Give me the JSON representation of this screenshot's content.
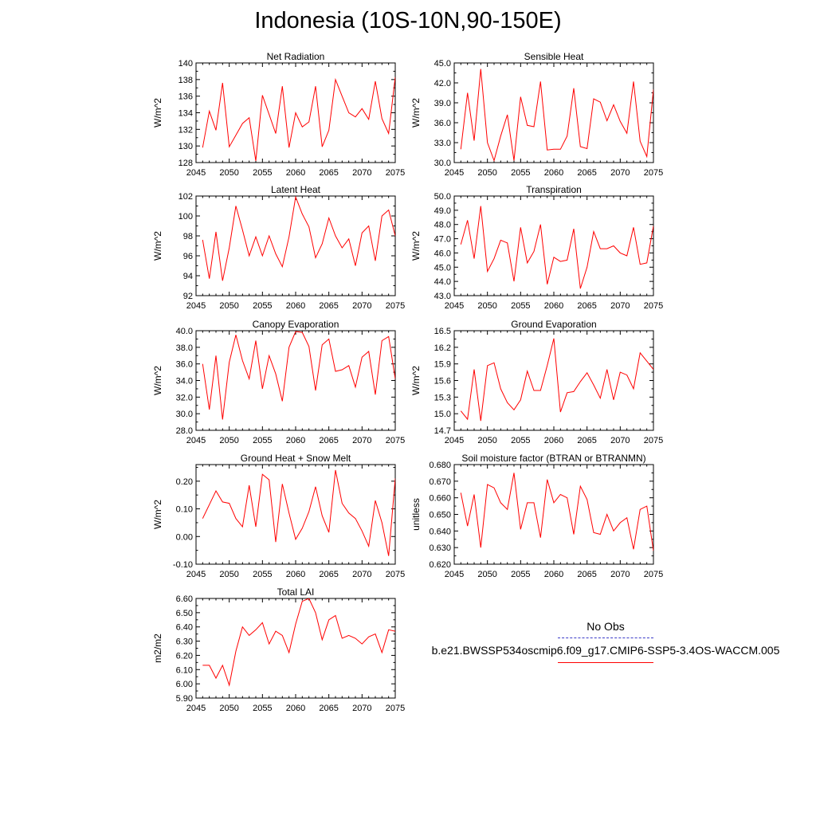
{
  "title": "Indonesia (10S-10N,90-150E)",
  "colors": {
    "model": "#ff0000",
    "obs": "#3a3ac8",
    "axis": "#000000"
  },
  "legend": {
    "obs_label": "No Obs",
    "model_label": "b.e21.BWSSP534oscmip6.f09_g17.CMIP6-SSP5-3.4OS-WACCM.005"
  },
  "chart_data": [
    {
      "type": "line",
      "title": "Net Radiation",
      "ylabel": "W/m^2",
      "xlim": [
        2045,
        2075
      ],
      "ylim": [
        128,
        140
      ],
      "xticks": [
        "2045",
        "2050",
        "2055",
        "2060",
        "2065",
        "2070",
        "2075"
      ],
      "yticks": [
        "128",
        "130",
        "132",
        "134",
        "136",
        "138",
        "140"
      ],
      "x": [
        2046,
        2047,
        2048,
        2049,
        2050,
        2051,
        2052,
        2053,
        2054,
        2055,
        2056,
        2057,
        2058,
        2059,
        2060,
        2061,
        2062,
        2063,
        2064,
        2065,
        2066,
        2067,
        2068,
        2069,
        2070,
        2071,
        2072,
        2073,
        2074,
        2075
      ],
      "values": [
        129.8,
        134.2,
        131.9,
        137.6,
        129.9,
        131.3,
        132.7,
        133.4,
        128.2,
        136.1,
        133.8,
        131.5,
        137.2,
        129.8,
        134.0,
        132.3,
        132.9,
        137.2,
        129.9,
        131.9,
        138.0,
        136.0,
        134.0,
        133.5,
        134.5,
        133.2,
        137.8,
        133.3,
        131.5,
        138.3
      ]
    },
    {
      "type": "line",
      "title": "Sensible Heat",
      "ylabel": "W/m^2",
      "xlim": [
        2045,
        2075
      ],
      "ylim": [
        30.0,
        45.0
      ],
      "xticks": [
        "2045",
        "2050",
        "2055",
        "2060",
        "2065",
        "2070",
        "2075"
      ],
      "yticks": [
        "30.0",
        "33.0",
        "36.0",
        "39.0",
        "42.0",
        "45.0"
      ],
      "x": [
        2046,
        2047,
        2048,
        2049,
        2050,
        2051,
        2052,
        2053,
        2054,
        2055,
        2056,
        2057,
        2058,
        2059,
        2060,
        2061,
        2062,
        2063,
        2064,
        2065,
        2066,
        2067,
        2068,
        2069,
        2070,
        2071,
        2072,
        2073,
        2074,
        2075
      ],
      "values": [
        32.0,
        40.5,
        33.3,
        44.1,
        33.0,
        30.3,
        34.0,
        37.2,
        30.3,
        39.9,
        35.6,
        35.4,
        42.2,
        31.9,
        32.0,
        32.0,
        34.0,
        41.2,
        32.4,
        32.1,
        39.6,
        39.1,
        36.3,
        38.7,
        36.2,
        34.4,
        42.2,
        33.2,
        30.9,
        41.0
      ]
    },
    {
      "type": "line",
      "title": "Latent Heat",
      "ylabel": "W/m^2",
      "xlim": [
        2045,
        2075
      ],
      "ylim": [
        92,
        102
      ],
      "xticks": [
        "2045",
        "2050",
        "2055",
        "2060",
        "2065",
        "2070",
        "2075"
      ],
      "yticks": [
        "92",
        "94",
        "96",
        "98",
        "100",
        "102"
      ],
      "x": [
        2046,
        2047,
        2048,
        2049,
        2050,
        2051,
        2052,
        2053,
        2054,
        2055,
        2056,
        2057,
        2058,
        2059,
        2060,
        2061,
        2062,
        2063,
        2064,
        2065,
        2066,
        2067,
        2068,
        2069,
        2070,
        2071,
        2072,
        2073,
        2074,
        2075
      ],
      "values": [
        97.6,
        93.7,
        98.4,
        93.5,
        96.8,
        101.0,
        98.6,
        96.0,
        97.9,
        96.0,
        98.0,
        96.2,
        94.9,
        97.9,
        101.9,
        100.2,
        98.9,
        95.8,
        97.2,
        99.8,
        98.0,
        96.8,
        97.7,
        95.0,
        98.3,
        99.0,
        95.5,
        100.0,
        100.6,
        98.0
      ]
    },
    {
      "type": "line",
      "title": "Transpiration",
      "ylabel": "W/m^2",
      "xlim": [
        2045,
        2075
      ],
      "ylim": [
        43.0,
        50.0
      ],
      "xticks": [
        "2045",
        "2050",
        "2055",
        "2060",
        "2065",
        "2070",
        "2075"
      ],
      "yticks": [
        "43.0",
        "44.0",
        "45.0",
        "46.0",
        "47.0",
        "48.0",
        "49.0",
        "50.0"
      ],
      "x": [
        2046,
        2047,
        2048,
        2049,
        2050,
        2051,
        2052,
        2053,
        2054,
        2055,
        2056,
        2057,
        2058,
        2059,
        2060,
        2061,
        2062,
        2063,
        2064,
        2065,
        2066,
        2067,
        2068,
        2069,
        2070,
        2071,
        2072,
        2073,
        2074,
        2075
      ],
      "values": [
        46.6,
        48.3,
        45.6,
        49.3,
        44.7,
        45.6,
        46.9,
        46.7,
        44.0,
        47.8,
        45.3,
        46.1,
        48.0,
        43.8,
        45.7,
        45.4,
        45.5,
        47.7,
        43.5,
        45.0,
        47.5,
        46.3,
        46.3,
        46.5,
        46.0,
        45.8,
        47.8,
        45.2,
        45.3,
        47.9
      ]
    },
    {
      "type": "line",
      "title": "Canopy Evaporation",
      "ylabel": "W/m^2",
      "xlim": [
        2045,
        2075
      ],
      "ylim": [
        28.0,
        40.0
      ],
      "xticks": [
        "2045",
        "2050",
        "2055",
        "2060",
        "2065",
        "2070",
        "2075"
      ],
      "yticks": [
        "28.0",
        "30.0",
        "32.0",
        "34.0",
        "36.0",
        "38.0",
        "40.0"
      ],
      "x": [
        2046,
        2047,
        2048,
        2049,
        2050,
        2051,
        2052,
        2053,
        2054,
        2055,
        2056,
        2057,
        2058,
        2059,
        2060,
        2061,
        2062,
        2063,
        2064,
        2065,
        2066,
        2067,
        2068,
        2069,
        2070,
        2071,
        2072,
        2073,
        2074,
        2075
      ],
      "values": [
        36.0,
        30.5,
        37.0,
        29.3,
        36.2,
        39.5,
        36.4,
        34.2,
        38.8,
        33.0,
        37.0,
        34.8,
        31.5,
        38.0,
        39.9,
        39.8,
        38.1,
        32.8,
        38.3,
        39.0,
        35.1,
        35.3,
        35.8,
        33.2,
        36.8,
        37.5,
        32.3,
        38.8,
        39.3,
        34.2
      ]
    },
    {
      "type": "line",
      "title": "Ground Evaporation",
      "ylabel": "W/m^2",
      "xlim": [
        2045,
        2075
      ],
      "ylim": [
        14.7,
        16.5
      ],
      "xticks": [
        "2045",
        "2050",
        "2055",
        "2060",
        "2065",
        "2070",
        "2075"
      ],
      "yticks": [
        "14.7",
        "15.0",
        "15.3",
        "15.6",
        "15.9",
        "16.2",
        "16.5"
      ],
      "x": [
        2046,
        2047,
        2048,
        2049,
        2050,
        2051,
        2052,
        2053,
        2054,
        2055,
        2056,
        2057,
        2058,
        2059,
        2060,
        2061,
        2062,
        2063,
        2064,
        2065,
        2066,
        2067,
        2068,
        2069,
        2070,
        2071,
        2072,
        2073,
        2074,
        2075
      ],
      "values": [
        15.05,
        14.9,
        15.8,
        14.87,
        15.87,
        15.92,
        15.45,
        15.2,
        15.07,
        15.25,
        15.77,
        15.42,
        15.42,
        15.87,
        16.36,
        15.03,
        15.38,
        15.4,
        15.58,
        15.74,
        15.52,
        15.28,
        15.8,
        15.25,
        15.75,
        15.7,
        15.45,
        16.1,
        15.95,
        15.8
      ]
    },
    {
      "type": "line",
      "title": "Ground Heat + Snow Melt",
      "ylabel": "W/m^2",
      "xlim": [
        2045,
        2075
      ],
      "ylim": [
        -0.1,
        0.26
      ],
      "xticks": [
        "2045",
        "2050",
        "2055",
        "2060",
        "2065",
        "2070",
        "2075"
      ],
      "yticks": [
        "-0.10",
        "0.00",
        "0.10",
        "0.20"
      ],
      "ytick_values": [
        -0.1,
        0.0,
        0.1,
        0.2
      ],
      "x": [
        2046,
        2047,
        2048,
        2049,
        2050,
        2051,
        2052,
        2053,
        2054,
        2055,
        2056,
        2057,
        2058,
        2059,
        2060,
        2061,
        2062,
        2063,
        2064,
        2065,
        2066,
        2067,
        2068,
        2069,
        2070,
        2071,
        2072,
        2073,
        2074,
        2075
      ],
      "values": [
        0.065,
        0.115,
        0.165,
        0.125,
        0.12,
        0.065,
        0.035,
        0.185,
        0.035,
        0.225,
        0.205,
        -0.02,
        0.19,
        0.085,
        -0.01,
        0.03,
        0.09,
        0.18,
        0.075,
        0.015,
        0.24,
        0.12,
        0.085,
        0.065,
        0.02,
        -0.035,
        0.13,
        0.05,
        -0.07,
        0.21
      ]
    },
    {
      "type": "line",
      "title": "Soil moisture factor (BTRAN or BTRANMN)",
      "ylabel": "unitless",
      "xlim": [
        2045,
        2075
      ],
      "ylim": [
        0.62,
        0.68
      ],
      "xticks": [
        "2045",
        "2050",
        "2055",
        "2060",
        "2065",
        "2070",
        "2075"
      ],
      "yticks": [
        "0.620",
        "0.630",
        "0.640",
        "0.650",
        "0.660",
        "0.670",
        "0.680"
      ],
      "x": [
        2046,
        2047,
        2048,
        2049,
        2050,
        2051,
        2052,
        2053,
        2054,
        2055,
        2056,
        2057,
        2058,
        2059,
        2060,
        2061,
        2062,
        2063,
        2064,
        2065,
        2066,
        2067,
        2068,
        2069,
        2070,
        2071,
        2072,
        2073,
        2074,
        2075
      ],
      "values": [
        0.663,
        0.643,
        0.662,
        0.63,
        0.668,
        0.666,
        0.657,
        0.653,
        0.675,
        0.641,
        0.657,
        0.657,
        0.636,
        0.671,
        0.657,
        0.662,
        0.66,
        0.638,
        0.667,
        0.659,
        0.639,
        0.638,
        0.65,
        0.64,
        0.645,
        0.648,
        0.629,
        0.653,
        0.655,
        0.628
      ]
    },
    {
      "type": "line",
      "title": "Total LAI",
      "ylabel": "m2/m2",
      "xlim": [
        2045,
        2075
      ],
      "ylim": [
        5.9,
        6.6
      ],
      "xticks": [
        "2045",
        "2050",
        "2055",
        "2060",
        "2065",
        "2070",
        "2075"
      ],
      "yticks": [
        "5.90",
        "6.00",
        "6.10",
        "6.20",
        "6.30",
        "6.40",
        "6.50",
        "6.60"
      ],
      "x": [
        2046,
        2047,
        2048,
        2049,
        2050,
        2051,
        2052,
        2053,
        2054,
        2055,
        2056,
        2057,
        2058,
        2059,
        2060,
        2061,
        2062,
        2063,
        2064,
        2065,
        2066,
        2067,
        2068,
        2069,
        2070,
        2071,
        2072,
        2073,
        2074,
        2075
      ],
      "values": [
        6.13,
        6.13,
        6.04,
        6.13,
        5.99,
        6.23,
        6.4,
        6.34,
        6.38,
        6.43,
        6.28,
        6.37,
        6.34,
        6.22,
        6.42,
        6.58,
        6.6,
        6.5,
        6.31,
        6.45,
        6.48,
        6.32,
        6.34,
        6.32,
        6.28,
        6.33,
        6.35,
        6.22,
        6.38,
        6.37
      ]
    }
  ]
}
